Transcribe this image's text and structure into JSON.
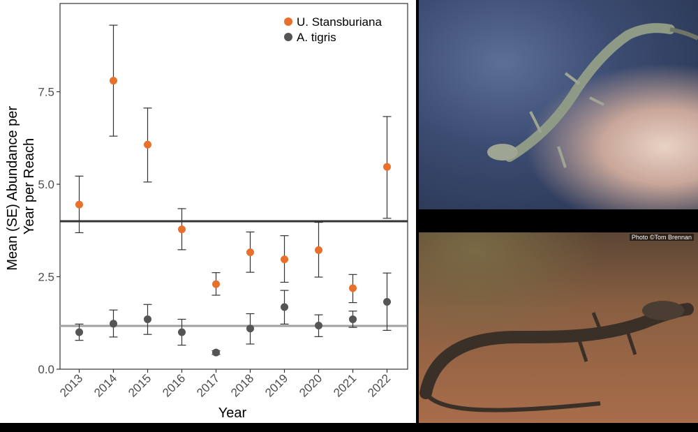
{
  "chart_data": {
    "type": "scatter",
    "categories": [
      "2013",
      "2014",
      "2015",
      "2016",
      "2017",
      "2018",
      "2019",
      "2020",
      "2021",
      "2022"
    ],
    "xlabel": "Year",
    "ylabel": [
      "Mean (SE) Abundance per",
      "Year per Reach"
    ],
    "ylim": [
      0,
      9.6
    ],
    "yticks": [
      0.0,
      2.5,
      5.0,
      7.5
    ],
    "ytick_labels": [
      "0.0",
      "2.5",
      "5.0",
      "7.5"
    ],
    "legend_position": "top-right",
    "series": [
      {
        "name": "U. Stansburiana",
        "color": "#e8702a",
        "values": [
          4.45,
          7.8,
          6.07,
          3.78,
          2.3,
          3.16,
          2.97,
          3.22,
          2.19,
          5.47
        ],
        "err_low": [
          3.69,
          6.3,
          5.06,
          3.23,
          2.0,
          2.62,
          2.35,
          2.49,
          1.8,
          4.08
        ],
        "err_high": [
          5.22,
          9.3,
          7.06,
          4.34,
          2.61,
          3.71,
          3.61,
          3.97,
          2.56,
          6.83
        ],
        "mean_line": 4.0,
        "line_color": "#333333"
      },
      {
        "name": "A. tigris",
        "color": "#555555",
        "values": [
          1.0,
          1.23,
          1.35,
          1.0,
          0.45,
          1.1,
          1.68,
          1.18,
          1.35,
          1.82
        ],
        "err_low": [
          0.78,
          0.87,
          0.94,
          0.65,
          0.4,
          0.68,
          1.22,
          0.88,
          1.13,
          1.05
        ],
        "err_high": [
          1.22,
          1.6,
          1.75,
          1.35,
          0.5,
          1.5,
          2.13,
          1.47,
          1.57,
          2.6
        ],
        "mean_line": 1.17,
        "line_color": "#a0a0a0"
      }
    ]
  },
  "photos": {
    "top_icon": "side-blotched-lizard-photo",
    "bottom_icon": "whiptail-lizard-photo",
    "bottom_credit": "Photo ©Tom Brennan"
  }
}
